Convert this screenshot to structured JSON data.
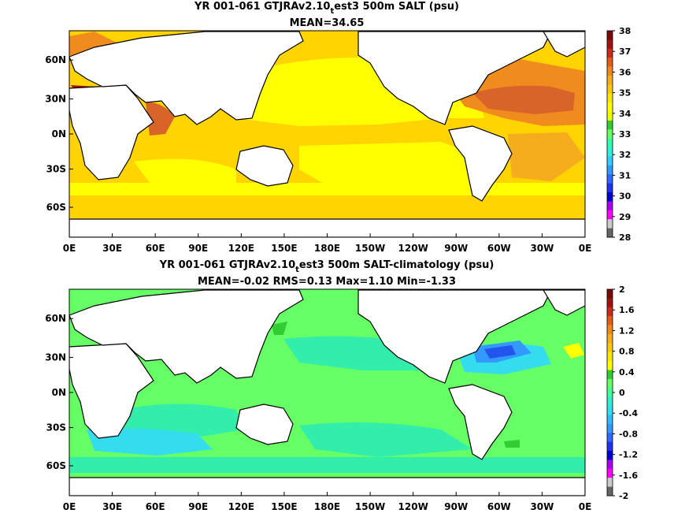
{
  "chart_data": [
    {
      "type": "heatmap",
      "title_line1_pre": "YR 001-061 GTJRAv2.10",
      "title_line1_sub": "t",
      "title_line1_post": "est3 500m SALT (psu)",
      "title_line2": "MEAN=34.65",
      "x_ticks": [
        "0E",
        "30E",
        "60E",
        "90E",
        "120E",
        "150E",
        "180E",
        "150W",
        "120W",
        "90W",
        "60W",
        "30W",
        "0E"
      ],
      "y_ticks": [
        "60N",
        "30N",
        "0N",
        "30S",
        "60S"
      ],
      "colorbar": {
        "ticks": [
          "38",
          "37",
          "36",
          "35",
          "34",
          "33",
          "32",
          "31",
          "30",
          "29",
          "28"
        ],
        "colors": [
          "#7a0a0a",
          "#a31010",
          "#cc2a1a",
          "#e35d18",
          "#f0891c",
          "#f5ad1e",
          "#f8c814",
          "#fbe510",
          "#ffff00",
          "#eeff00",
          "#33cc33",
          "#66ff66",
          "#33ffaa",
          "#33eedd",
          "#33ccff",
          "#3399ff",
          "#3366ff",
          "#2233ee",
          "#0000cc",
          "#aa00ee",
          "#ff00ff",
          "#cccccc",
          "#666666"
        ]
      },
      "field_colors": {
        "ocean": "#ffd400",
        "pacific": "#ffff00",
        "atlantic_high": "#f08c1e",
        "atlantic_core": "#d9642a",
        "mediterranean": "#a31010",
        "arabian": "#d9642a",
        "arctic": "#ffcc00",
        "southern": "#ffd400"
      }
    },
    {
      "type": "heatmap",
      "title_line1_pre": "YR 001-061 GTJRAv2.10",
      "title_line1_sub": "t",
      "title_line1_post": "est3 500m SALT-climatology (psu)",
      "title_line2": "MEAN=-0.02   RMS=0.13   Max=1.10   Min=-1.33",
      "x_ticks": [
        "0E",
        "30E",
        "60E",
        "90E",
        "120E",
        "150E",
        "180E",
        "150W",
        "120W",
        "90W",
        "60W",
        "30W",
        "0E"
      ],
      "y_ticks": [
        "60N",
        "30N",
        "0N",
        "30S",
        "60S"
      ],
      "colorbar": {
        "ticks": [
          "2",
          "1.6",
          "1.2",
          "0.8",
          "0.4",
          "0",
          "-0.4",
          "-0.8",
          "-1.2",
          "-1.6",
          "-2"
        ],
        "colors": [
          "#7a0a0a",
          "#a31010",
          "#cc2a1a",
          "#e35d18",
          "#f0891c",
          "#f5ad1e",
          "#f8c814",
          "#fbe510",
          "#ffff00",
          "#33cc33",
          "#66ff66",
          "#44ff99",
          "#33eecc",
          "#33ddee",
          "#33bbff",
          "#3399ff",
          "#3366ff",
          "#2233ee",
          "#0000cc",
          "#aa00ee",
          "#ff00ff",
          "#cccccc",
          "#666666"
        ]
      },
      "field_colors": {
        "ocean": "#66ff66",
        "anomaly_neg": "#33eeaa",
        "southern_neg": "#33ddee",
        "gulf_neg": "#3399ff",
        "gulf_core": "#2255ee",
        "small_pos": "#33cc33"
      }
    }
  ]
}
